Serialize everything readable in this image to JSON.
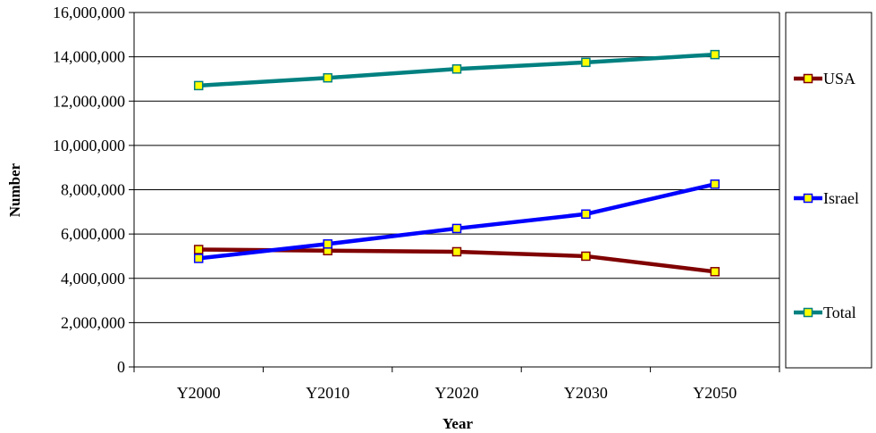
{
  "chart_data": {
    "type": "line",
    "title": "",
    "xlabel": "Year",
    "ylabel": "Number",
    "categories": [
      "Y2000",
      "Y2010",
      "Y2020",
      "Y2030",
      "Y2050"
    ],
    "ylim": [
      0,
      16000000
    ],
    "yticks": [
      0,
      2000000,
      4000000,
      6000000,
      8000000,
      10000000,
      12000000,
      14000000,
      16000000
    ],
    "ytick_labels": [
      "0",
      "2,000,000",
      "4,000,000",
      "6,000,000",
      "8,000,000",
      "10,000,000",
      "12,000,000",
      "14,000,000",
      "16,000,000"
    ],
    "grid": true,
    "legend_position": "right",
    "marker_fill": "#FFFF00",
    "series": [
      {
        "name": "USA",
        "color": "#800000",
        "values": [
          5300000,
          5250000,
          5200000,
          5000000,
          4300000
        ]
      },
      {
        "name": "Israel",
        "color": "#0000FF",
        "values": [
          4900000,
          5550000,
          6250000,
          6900000,
          8250000
        ]
      },
      {
        "name": "Total",
        "color": "#008080",
        "values": [
          12700000,
          13050000,
          13450000,
          13750000,
          14100000
        ]
      }
    ]
  }
}
